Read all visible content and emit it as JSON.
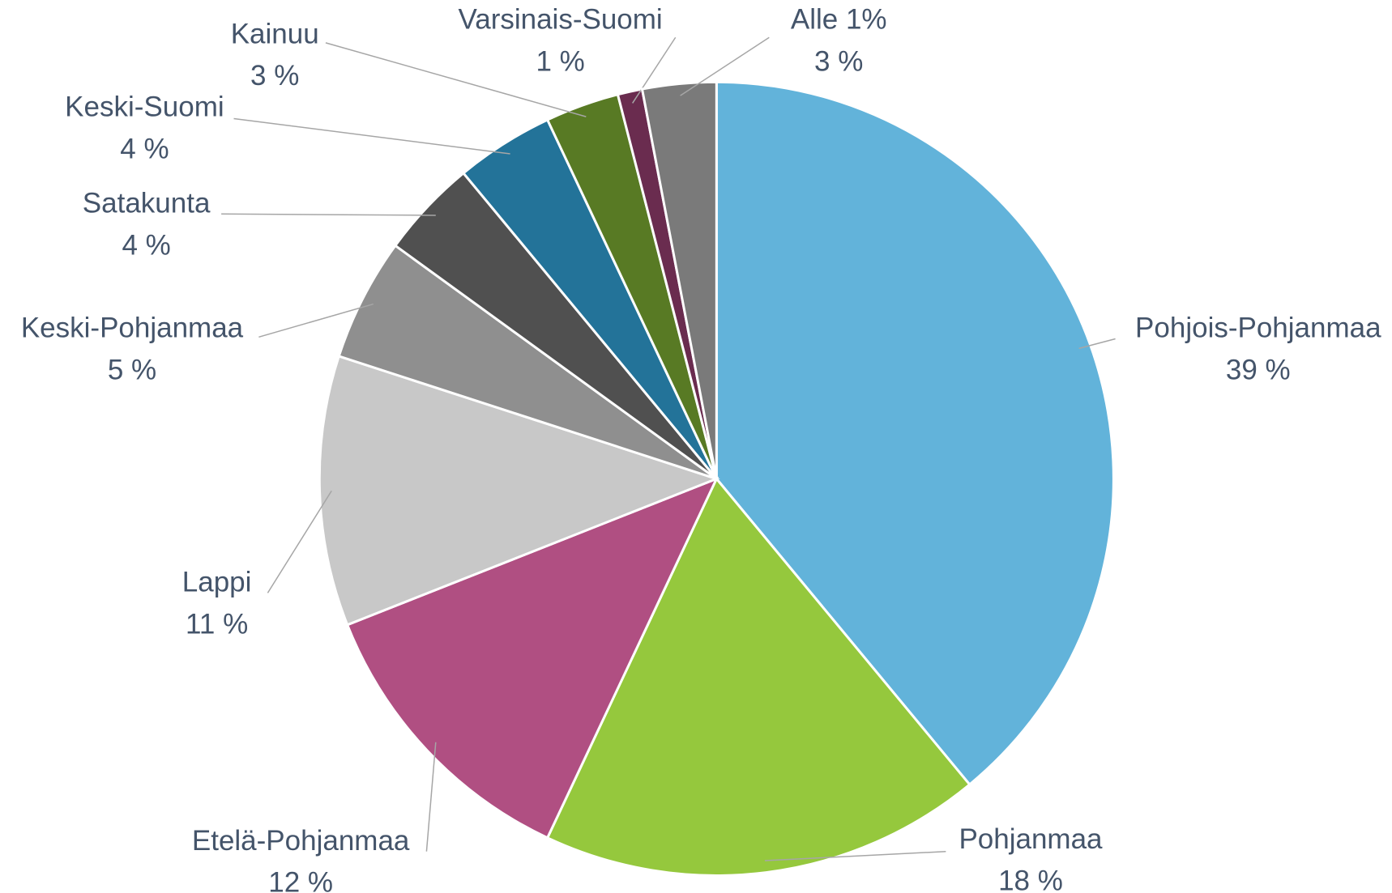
{
  "chart_data": {
    "type": "pie",
    "categories": [
      "Pohjois-Pohjanmaa",
      "Pohjanmaa",
      "Etelä-Pohjanmaa",
      "Lappi",
      "Keski-Pohjanmaa",
      "Satakunta",
      "Keski-Suomi",
      "Kainuu",
      "Varsinais-Suomi",
      "Alle 1%"
    ],
    "values": [
      39,
      18,
      12,
      11,
      5,
      4,
      4,
      3,
      1,
      3
    ],
    "value_labels": [
      "39 %",
      "18 %",
      "12 %",
      "11 %",
      "5 %",
      "4 %",
      "4 %",
      "3 %",
      "1 %",
      "3 %"
    ],
    "colors": [
      "#62b3da",
      "#95c83d",
      "#b04f82",
      "#c8c8c8",
      "#8f8f8f",
      "#505050",
      "#237399",
      "#587a24",
      "#6a2c4f",
      "#7a7a7a"
    ]
  }
}
